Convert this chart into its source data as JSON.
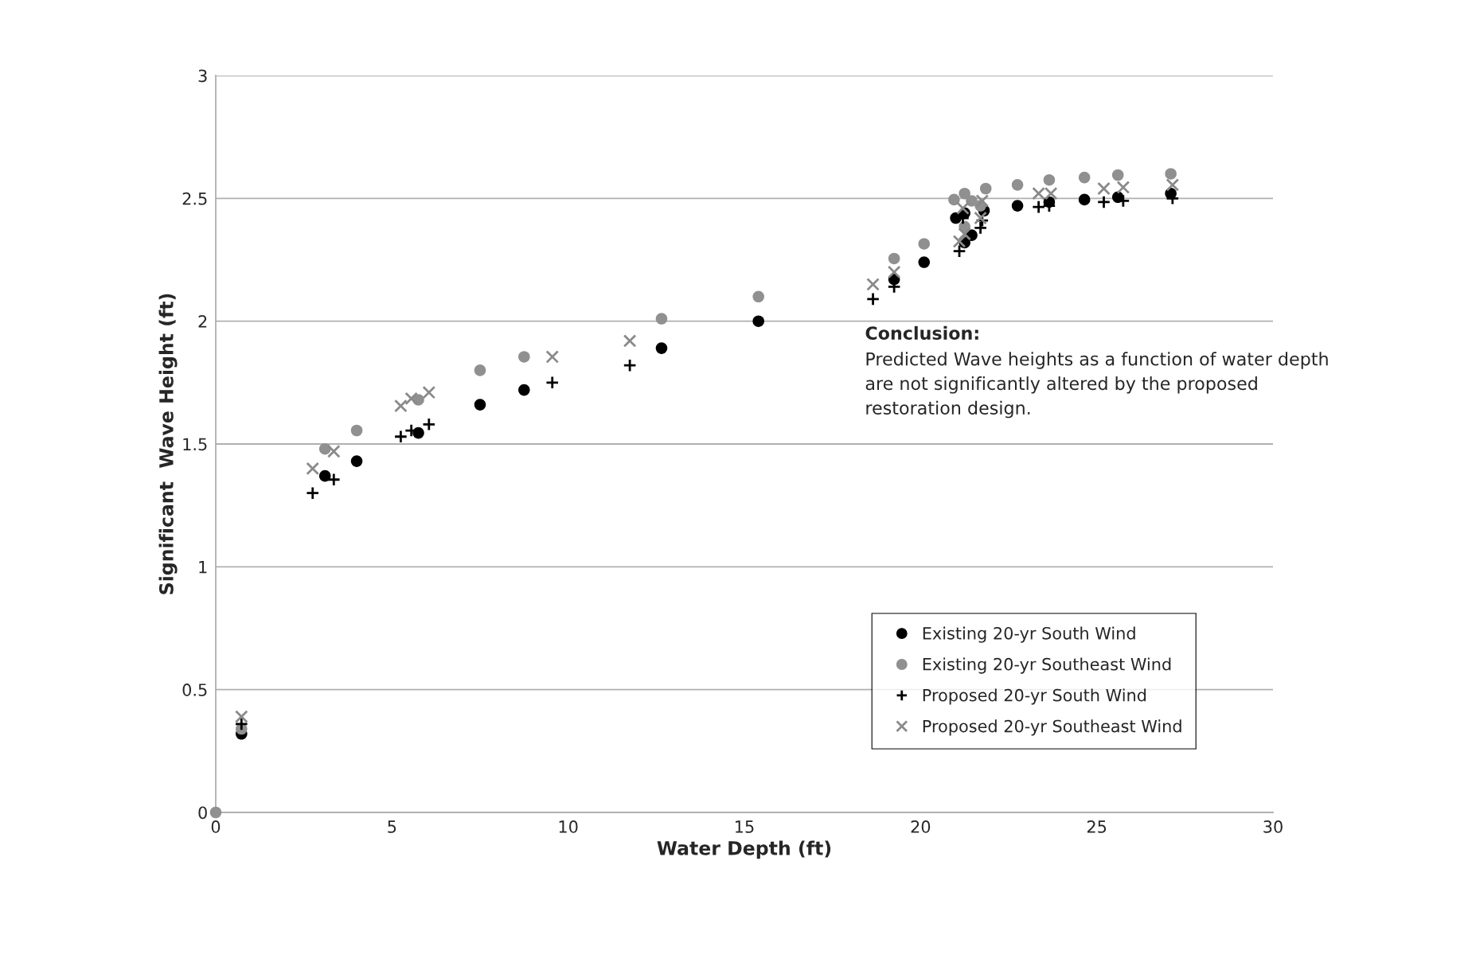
{
  "chart_data": {
    "type": "scatter",
    "xlabel": "Water Depth (ft)",
    "ylabel": "Significant  Wave Height (ft)",
    "xlim": [
      0,
      30
    ],
    "xticks": [
      0,
      5,
      10,
      15,
      20,
      25,
      30
    ],
    "ylim": [
      0,
      3
    ],
    "yticks": [
      0,
      0.5,
      1,
      1.5,
      2,
      2.5,
      3
    ],
    "grid": "y",
    "legend": "bottom right",
    "annotations": [
      "Conclusion:",
      "Predicted Wave heights as a function of water depth are not significantly altered by the proposed restoration design."
    ],
    "series": [
      {
        "name": "Existing 20-yr South Wind",
        "color": "#000000",
        "marker": "circle",
        "x": [
          0.73,
          3.1,
          4.0,
          5.75,
          7.5,
          8.75,
          12.65,
          15.4,
          19.25,
          20.1,
          21.0,
          21.25,
          21.25,
          21.45,
          21.8,
          22.75,
          23.65,
          24.65,
          25.6,
          27.1
        ],
        "values": [
          0.32,
          1.37,
          1.43,
          1.545,
          1.66,
          1.72,
          1.89,
          2.0,
          2.17,
          2.24,
          2.42,
          2.44,
          2.32,
          2.35,
          2.45,
          2.47,
          2.485,
          2.495,
          2.505,
          2.52
        ]
      },
      {
        "name": "Existing 20-yr Southeast Wind",
        "color": "#909090",
        "marker": "circle",
        "x": [
          0,
          0.73,
          3.1,
          4.0,
          5.75,
          7.5,
          8.75,
          12.65,
          15.4,
          19.25,
          20.1,
          20.95,
          21.25,
          21.25,
          21.45,
          21.7,
          21.85,
          22.75,
          23.65,
          24.65,
          25.6,
          27.1
        ],
        "values": [
          0,
          0.34,
          1.48,
          1.555,
          1.68,
          1.8,
          1.855,
          2.01,
          2.1,
          2.255,
          2.315,
          2.495,
          2.52,
          2.385,
          2.49,
          2.47,
          2.54,
          2.555,
          2.575,
          2.585,
          2.595,
          2.6
        ]
      },
      {
        "name": "Proposed 20-yr South Wind",
        "color": "#000000",
        "marker": "plus",
        "x": [
          0.73,
          2.75,
          3.35,
          5.25,
          5.55,
          6.05,
          9.55,
          11.75,
          18.65,
          19.25,
          21.1,
          21.2,
          21.7,
          21.75,
          23.35,
          23.65,
          25.2,
          25.75,
          27.15
        ],
        "values": [
          0.36,
          1.3,
          1.355,
          1.53,
          1.555,
          1.58,
          1.75,
          1.82,
          2.09,
          2.14,
          2.285,
          2.42,
          2.38,
          2.41,
          2.465,
          2.47,
          2.485,
          2.49,
          2.5
        ]
      },
      {
        "name": "Proposed 20-yr Southeast Wind",
        "color": "#8a8a8a",
        "marker": "cross",
        "x": [
          0.73,
          2.75,
          3.35,
          5.25,
          5.55,
          6.05,
          9.55,
          11.75,
          18.65,
          19.25,
          21.1,
          21.2,
          21.25,
          21.75,
          21.7,
          23.35,
          23.7,
          25.2,
          25.75,
          27.15
        ],
        "values": [
          0.39,
          1.4,
          1.47,
          1.655,
          1.685,
          1.71,
          1.855,
          1.92,
          2.15,
          2.2,
          2.325,
          2.46,
          2.355,
          2.49,
          2.42,
          2.52,
          2.52,
          2.54,
          2.545,
          2.555
        ]
      }
    ]
  }
}
